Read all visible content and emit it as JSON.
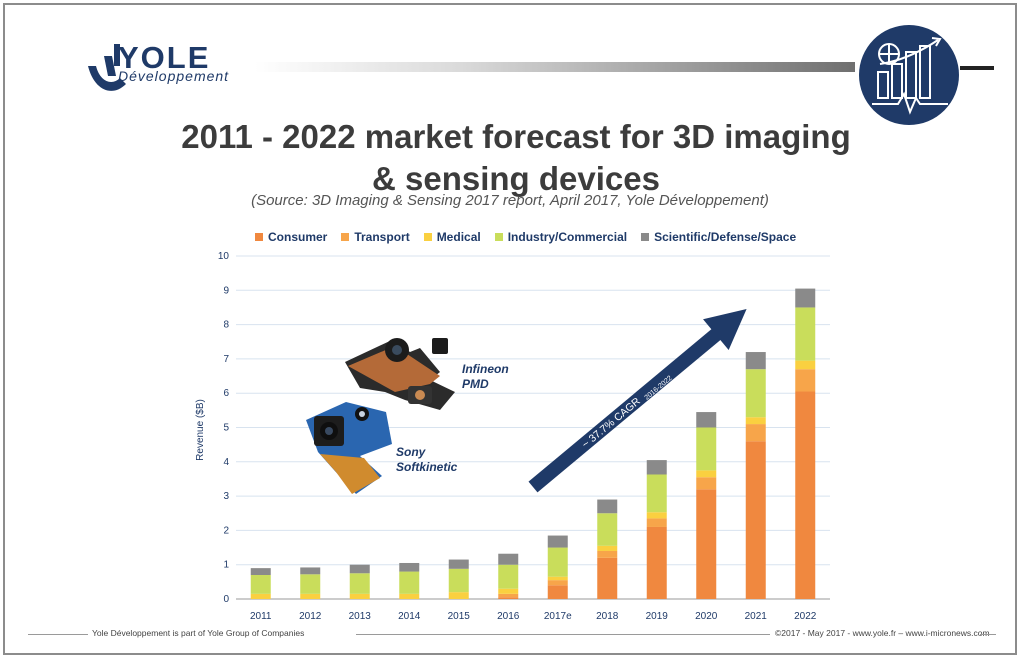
{
  "header": {
    "logo_name": "YOLE",
    "logo_sub": "Développement"
  },
  "title_line1": "2011 - 2022 market forecast for 3D imaging",
  "title_line2": "& sensing devices",
  "subtitle": "(Source: 3D Imaging & Sensing 2017 report, April 2017, Yole Développement)",
  "legend": [
    {
      "label": "Consumer",
      "color": "#f0883f"
    },
    {
      "label": "Transport",
      "color": "#f7a54a"
    },
    {
      "label": "Medical",
      "color": "#fad040"
    },
    {
      "label": "Industry/Commercial",
      "color": "#c9dd5b"
    },
    {
      "label": "Scientific/Defense/Space",
      "color": "#8a8a8a"
    }
  ],
  "annotations": {
    "cagr": "~ 37.7% CAGR",
    "cagr_sub": "2016-2022",
    "infineon_line1": "Infineon",
    "infineon_line2": "PMD",
    "sony_line1": "Sony",
    "sony_line2": "Softkinetic"
  },
  "chart_data": {
    "type": "bar",
    "stacked": true,
    "categories": [
      "2011",
      "2012",
      "2013",
      "2014",
      "2015",
      "2016",
      "2017e",
      "2018",
      "2019",
      "2020",
      "2021",
      "2022"
    ],
    "series": [
      {
        "name": "Consumer",
        "color": "#f0883f",
        "values": [
          0.0,
          0.0,
          0.0,
          0.0,
          0.0,
          0.05,
          0.4,
          1.2,
          2.1,
          3.2,
          4.6,
          6.05
        ]
      },
      {
        "name": "Transport",
        "color": "#f7a54a",
        "values": [
          0.0,
          0.0,
          0.0,
          0.0,
          0.0,
          0.1,
          0.15,
          0.2,
          0.25,
          0.35,
          0.5,
          0.65
        ]
      },
      {
        "name": "Medical",
        "color": "#fad040",
        "values": [
          0.15,
          0.15,
          0.15,
          0.15,
          0.2,
          0.15,
          0.1,
          0.15,
          0.18,
          0.2,
          0.2,
          0.25
        ]
      },
      {
        "name": "Industry/Commercial",
        "color": "#c9dd5b",
        "values": [
          0.55,
          0.57,
          0.6,
          0.65,
          0.68,
          0.7,
          0.85,
          0.95,
          1.1,
          1.25,
          1.4,
          1.55
        ]
      },
      {
        "name": "Scientific/Defense/Space",
        "color": "#8a8a8a",
        "values": [
          0.2,
          0.2,
          0.25,
          0.25,
          0.27,
          0.32,
          0.35,
          0.4,
          0.42,
          0.45,
          0.5,
          0.55
        ]
      }
    ],
    "ylabel": "Revenue ($B)",
    "yticks": [
      0,
      1,
      2,
      3,
      4,
      5,
      6,
      7,
      8,
      9,
      10
    ],
    "ylim": [
      0,
      10
    ],
    "grid": true,
    "legend_position": "top"
  },
  "footer": {
    "left": "Yole Développement is part of Yole Group of Companies",
    "right": "©2017 - May 2017 - www.yole.fr – www.i-micronews.com"
  }
}
